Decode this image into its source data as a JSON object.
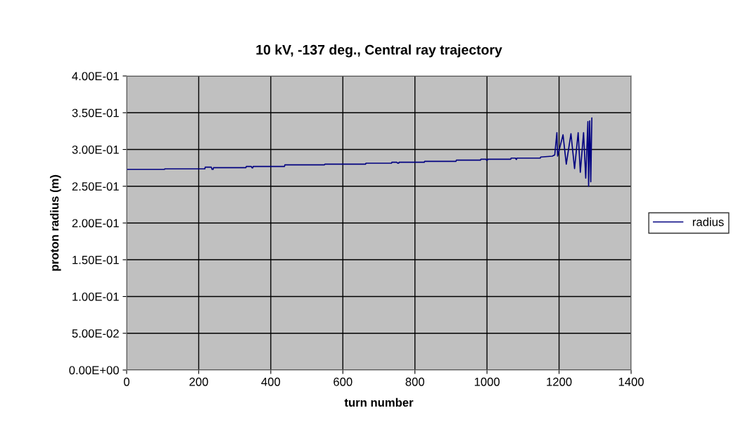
{
  "chart_data": {
    "type": "line",
    "title": "10 kV, -137 deg., Central ray trajectory",
    "xlabel": "turn number",
    "ylabel": "proton radius (m)",
    "xlim": [
      0,
      1400
    ],
    "xticks": [
      0,
      200,
      400,
      600,
      800,
      1000,
      1200,
      1400
    ],
    "ylim": [
      0,
      0.4
    ],
    "yticks": [
      {
        "value": 0,
        "label": "0.00E+00"
      },
      {
        "value": 0.05,
        "label": "5.00E-02"
      },
      {
        "value": 0.1,
        "label": "1.00E-01"
      },
      {
        "value": 0.15,
        "label": "1.50E-01"
      },
      {
        "value": 0.2,
        "label": "2.00E-01"
      },
      {
        "value": 0.25,
        "label": "2.50E-01"
      },
      {
        "value": 0.3,
        "label": "3.00E-01"
      },
      {
        "value": 0.35,
        "label": "3.50E-01"
      },
      {
        "value": 0.4,
        "label": "4.00E-01"
      }
    ],
    "grid": true,
    "legend": "right",
    "marker": "none",
    "line_style": "solid",
    "series": [
      {
        "name": "radius",
        "color": "#000080",
        "x": [
          0,
          105,
          106,
          217,
          218,
          235,
          237,
          240,
          241,
          331,
          332,
          346,
          348,
          350,
          351,
          438,
          439,
          549,
          550,
          663,
          664,
          735,
          736,
          750,
          752,
          755,
          756,
          826,
          827,
          914,
          915,
          982,
          983,
          997,
          999,
          1001,
          1002,
          1066,
          1067,
          1079,
          1081,
          1082,
          1083,
          1148,
          1149,
          1181,
          1188,
          1194,
          1196,
          1211,
          1220,
          1233,
          1243,
          1253,
          1259,
          1268,
          1274,
          1280,
          1282,
          1285,
          1288,
          1291,
          1289
        ],
        "values": [
          0.273,
          0.273,
          0.2737,
          0.2737,
          0.2759,
          0.2759,
          0.273,
          0.273,
          0.2753,
          0.2753,
          0.2769,
          0.2769,
          0.275,
          0.275,
          0.2769,
          0.2769,
          0.2791,
          0.2791,
          0.28,
          0.28,
          0.2813,
          0.2813,
          0.2826,
          0.2826,
          0.2814,
          0.2814,
          0.2826,
          0.2826,
          0.2839,
          0.2839,
          0.2855,
          0.2855,
          0.2868,
          0.2868,
          0.2855,
          0.2855,
          0.2868,
          0.2868,
          0.2883,
          0.2883,
          0.2865,
          0.2865,
          0.2883,
          0.2883,
          0.2897,
          0.2909,
          0.2926,
          0.323,
          0.291,
          0.32,
          0.28,
          0.3215,
          0.274,
          0.323,
          0.269,
          0.323,
          0.261,
          0.338,
          0.25,
          0.339,
          0.256,
          0.343,
          0.296
        ]
      }
    ]
  }
}
